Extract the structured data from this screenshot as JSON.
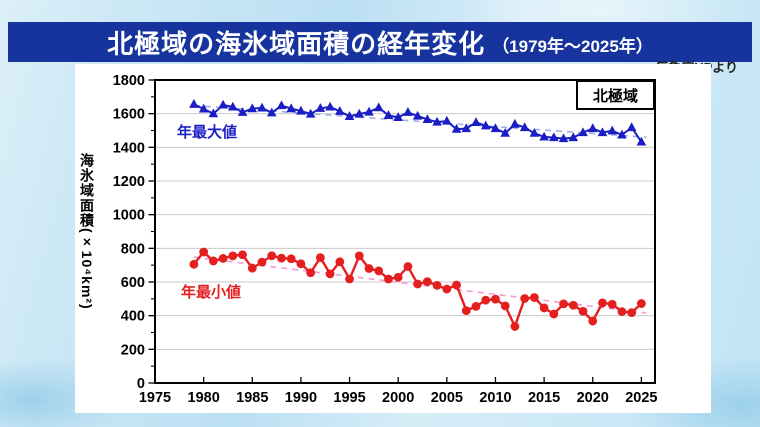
{
  "page": {
    "title_main": "北極域の海氷域面積の経年変化",
    "title_sub": "（1979年～2025年）",
    "credit": "気象庁HPより"
  },
  "chart": {
    "region_label": "北極域",
    "max_series_label": "年最大値",
    "min_series_label": "年最小値",
    "y_axis_title": "海氷域面積(×10⁴km²)",
    "colors": {
      "title_bar_bg": "#16339e",
      "title_text": "#ffffff",
      "panel_bg": "#ffffff",
      "page_bg": "#c9e7f5",
      "max_series": "#1a1ec4",
      "min_series": "#e41f1f",
      "max_trend": "#9bb0e8",
      "min_trend": "#f59ad2",
      "gridline": "#c9c9c9",
      "frame": "#000000"
    }
  },
  "chart_data": {
    "type": "line",
    "title": "北極域の海氷域面積の経年変化（1979年～2025年）",
    "xlabel": "",
    "ylabel": "海氷域面積(×10⁴km²)",
    "xlim": [
      1975,
      2026.4
    ],
    "ylim": [
      0,
      1800
    ],
    "x_ticks": [
      1975,
      1980,
      1985,
      1990,
      1995,
      2000,
      2005,
      2010,
      2015,
      2020,
      2025
    ],
    "y_ticks": [
      0,
      200,
      400,
      600,
      800,
      1000,
      1200,
      1400,
      1600,
      1800
    ],
    "grid": "horizontal",
    "legend_position": "top-right",
    "x": [
      1979,
      1980,
      1981,
      1982,
      1983,
      1984,
      1985,
      1986,
      1987,
      1988,
      1989,
      1990,
      1991,
      1992,
      1993,
      1994,
      1995,
      1996,
      1997,
      1998,
      1999,
      2000,
      2001,
      2002,
      2003,
      2004,
      2005,
      2006,
      2007,
      2008,
      2009,
      2010,
      2011,
      2012,
      2013,
      2014,
      2015,
      2016,
      2017,
      2018,
      2019,
      2020,
      2021,
      2022,
      2023,
      2024,
      2025
    ],
    "series": [
      {
        "name": "年最大値",
        "color": "#1a1ec4",
        "marker": "triangle",
        "values": [
          1656,
          1628,
          1600,
          1652,
          1640,
          1608,
          1630,
          1634,
          1605,
          1648,
          1630,
          1616,
          1598,
          1632,
          1640,
          1614,
          1584,
          1598,
          1610,
          1636,
          1590,
          1578,
          1608,
          1586,
          1566,
          1550,
          1556,
          1508,
          1512,
          1548,
          1528,
          1512,
          1484,
          1538,
          1518,
          1484,
          1462,
          1458,
          1452,
          1458,
          1488,
          1512,
          1488,
          1498,
          1474,
          1518,
          1432
        ]
      },
      {
        "name": "年最小値",
        "color": "#e41f1f",
        "marker": "circle",
        "values": [
          705,
          778,
          725,
          740,
          755,
          762,
          682,
          718,
          756,
          742,
          738,
          708,
          655,
          745,
          648,
          720,
          618,
          755,
          680,
          666,
          618,
          628,
          692,
          588,
          602,
          580,
          558,
          582,
          430,
          455,
          492,
          498,
          458,
          336,
          502,
          508,
          446,
          410,
          470,
          462,
          426,
          368,
          476,
          468,
          424,
          418,
          472
        ]
      }
    ],
    "trend_lines": [
      {
        "series": "年最大値",
        "style": "dashed",
        "color": "#9bb0e8",
        "x1": 1979,
        "y1": 1648,
        "x2": 2025.5,
        "y2": 1460
      },
      {
        "series": "年最小値",
        "style": "dashed",
        "color": "#f59ad2",
        "x1": 1979,
        "y1": 748,
        "x2": 2025.5,
        "y2": 416
      }
    ]
  }
}
